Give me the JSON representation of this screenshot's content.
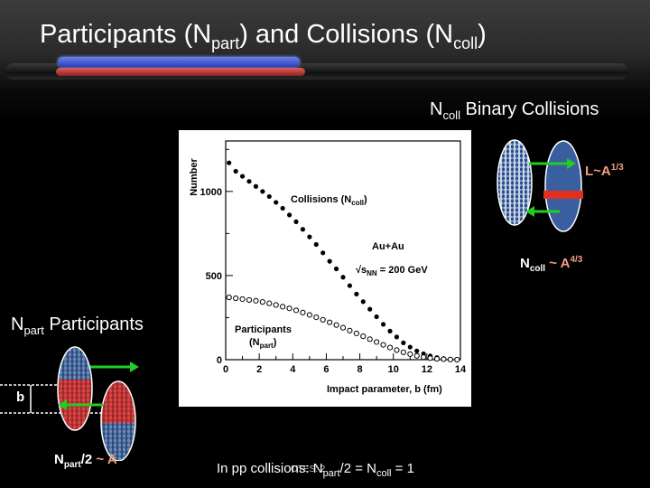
{
  "slide": {
    "title_main": "Participants (N",
    "title_sub1": "part",
    "title_mid": ") and Collisions (N",
    "title_sub2": "coll",
    "title_end": ")"
  },
  "ncoll_heading": {
    "n": "N",
    "sub": "coll",
    "text": " Binary Collisions"
  },
  "npart_heading": {
    "n": "N",
    "sub": "part",
    "text": " Participants"
  },
  "length_label": {
    "text": "L~A",
    "sup": "1/3"
  },
  "ncoll_scaling": {
    "n": "N",
    "sub": "coll",
    "tilde": " ~ ",
    "a": "A",
    "sup": "4/3"
  },
  "npart_scaling": {
    "n": "N",
    "sub": "part",
    "slash": "/2",
    "tilde": " ~ ",
    "a": "A"
  },
  "b_label": "b",
  "pp_line": {
    "pre": "In pp collisions: N",
    "sub": "part",
    "mid": "/2 = N",
    "sub2": "coll",
    "post": " = 1"
  },
  "footer_stamp": "OTES: 2",
  "plot": {
    "ylabel": "Number",
    "xlabel": "Impact parameter, b (fm)",
    "collisions_label": "Collisions (N",
    "collisions_sub": "coll",
    "collisions_end": ")",
    "system": "Au+Au",
    "energy_pre": "√s",
    "energy_sub": "NN",
    "energy_post": " = 200 GeV",
    "participants_label": "Participants",
    "participants_sub_pre": "(N",
    "participants_sub": "part",
    "participants_sub_end": ")",
    "y_ticks": [
      "0",
      "500",
      "1000"
    ],
    "x_ticks": [
      "0",
      "2",
      "4",
      "6",
      "8",
      "10",
      "12",
      "14"
    ]
  },
  "chart_data": {
    "type": "scatter",
    "xlabel": "Impact parameter, b (fm)",
    "ylabel": "Number",
    "xlim": [
      0,
      14
    ],
    "ylim": [
      0,
      1300
    ],
    "series": [
      {
        "name": "Collisions (Ncoll)",
        "marker": "filled",
        "x": [
          0.2,
          0.6,
          1.0,
          1.4,
          1.8,
          2.2,
          2.6,
          3.0,
          3.4,
          3.8,
          4.2,
          4.6,
          5.0,
          5.4,
          5.8,
          6.2,
          6.6,
          7.0,
          7.4,
          7.8,
          8.2,
          8.6,
          9.0,
          9.4,
          9.8,
          10.2,
          10.6,
          11.0,
          11.4,
          11.8,
          12.2,
          12.6,
          13.0,
          13.4,
          13.8
        ],
        "y": [
          1170,
          1120,
          1090,
          1060,
          1030,
          1000,
          970,
          935,
          900,
          860,
          820,
          775,
          730,
          685,
          635,
          585,
          540,
          490,
          440,
          390,
          345,
          300,
          255,
          210,
          170,
          135,
          100,
          75,
          52,
          35,
          22,
          12,
          6,
          3,
          1
        ]
      },
      {
        "name": "Participants (Npart)",
        "marker": "open",
        "x": [
          0.2,
          0.6,
          1.0,
          1.4,
          1.8,
          2.2,
          2.6,
          3.0,
          3.4,
          3.8,
          4.2,
          4.6,
          5.0,
          5.4,
          5.8,
          6.2,
          6.6,
          7.0,
          7.4,
          7.8,
          8.2,
          8.6,
          9.0,
          9.4,
          9.8,
          10.2,
          10.6,
          11.0,
          11.4,
          11.8,
          12.2,
          12.6,
          13.0,
          13.4,
          13.8
        ],
        "y": [
          370,
          365,
          360,
          355,
          350,
          343,
          335,
          325,
          315,
          305,
          293,
          280,
          266,
          252,
          237,
          222,
          206,
          190,
          173,
          156,
          139,
          122,
          105,
          88,
          72,
          57,
          44,
          33,
          23,
          15,
          9,
          5,
          3,
          1,
          0
        ]
      }
    ]
  },
  "colors": {
    "blue_bar": "#3a50d8",
    "red_bar": "#c03030",
    "nucleus_blue": "#3a5fa0",
    "red_disk": "#e03020",
    "arrow_green": "#22cc22",
    "salmon": "#f0a080"
  }
}
